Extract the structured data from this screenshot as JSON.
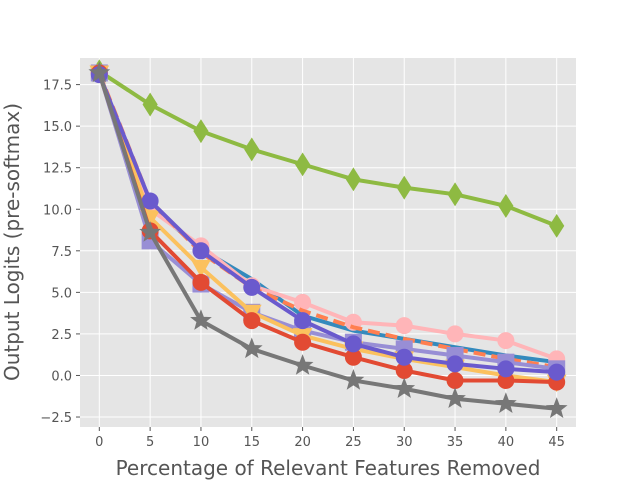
{
  "chart_data": {
    "type": "line",
    "title": "",
    "xlabel": "Percentage of Relevant Features Removed",
    "ylabel": "Output Logits (pre-softmax)",
    "x": [
      0,
      5,
      10,
      15,
      20,
      25,
      30,
      35,
      40,
      45
    ],
    "xticks": [
      "0",
      "5",
      "10",
      "15",
      "20",
      "25",
      "30",
      "35",
      "40",
      "45"
    ],
    "yticks": [
      "−2.5",
      "0.0",
      "2.5",
      "5.0",
      "7.5",
      "10.0",
      "12.5",
      "15.0",
      "17.5"
    ],
    "ytick_values": [
      -2.5,
      0,
      2.5,
      5,
      7.5,
      10,
      12.5,
      15,
      17.5
    ],
    "xlim": [
      -1.9,
      46.9
    ],
    "ylim": [
      -3.1,
      19.1
    ],
    "grid": true,
    "series": [
      {
        "color": "#8EBA42",
        "marker": "diamond",
        "dashed": false,
        "values": [
          18.3,
          16.3,
          14.7,
          13.6,
          12.7,
          11.8,
          11.3,
          10.9,
          10.2,
          9.0
        ]
      },
      {
        "color": "#348ABD",
        "marker": "none",
        "dashed": false,
        "values": [
          18.1,
          10.2,
          7.6,
          5.8,
          3.6,
          2.7,
          2.2,
          1.7,
          1.2,
          0.8
        ]
      },
      {
        "color": "#FFB5B8",
        "marker": "circle",
        "dashed": false,
        "values": [
          18.2,
          10.0,
          7.8,
          5.4,
          4.4,
          3.2,
          3.0,
          2.5,
          2.1,
          1.0
        ]
      },
      {
        "color": "#FF7F50",
        "marker": "none",
        "dashed": true,
        "values": [
          18.2,
          10.5,
          7.4,
          5.3,
          3.9,
          2.9,
          2.2,
          1.6,
          1.0,
          0.5
        ]
      },
      {
        "color": "#988ED5",
        "marker": "square",
        "dashed": false,
        "values": [
          18.2,
          8.1,
          5.5,
          3.8,
          2.7,
          2.0,
          1.6,
          1.2,
          0.8,
          0.4
        ]
      },
      {
        "color": "#FBC15E",
        "marker": "triangle-down",
        "dashed": false,
        "values": [
          18.2,
          9.5,
          6.5,
          3.8,
          2.4,
          1.6,
          1.0,
          0.5,
          0.0,
          -0.4
        ]
      },
      {
        "color": "#E24A33",
        "marker": "circle",
        "dashed": false,
        "values": [
          18.2,
          8.7,
          5.6,
          3.3,
          2.0,
          1.1,
          0.3,
          -0.3,
          -0.3,
          -0.4
        ]
      },
      {
        "color": "#6A5ACD",
        "marker": "circle",
        "dashed": false,
        "values": [
          18.1,
          10.5,
          7.5,
          5.3,
          3.3,
          1.9,
          1.1,
          0.7,
          0.4,
          0.2
        ]
      },
      {
        "color": "#777777",
        "marker": "star",
        "dashed": false,
        "values": [
          18.2,
          8.6,
          3.3,
          1.6,
          0.6,
          -0.3,
          -0.8,
          -1.4,
          -1.7,
          -2.0
        ]
      }
    ]
  }
}
